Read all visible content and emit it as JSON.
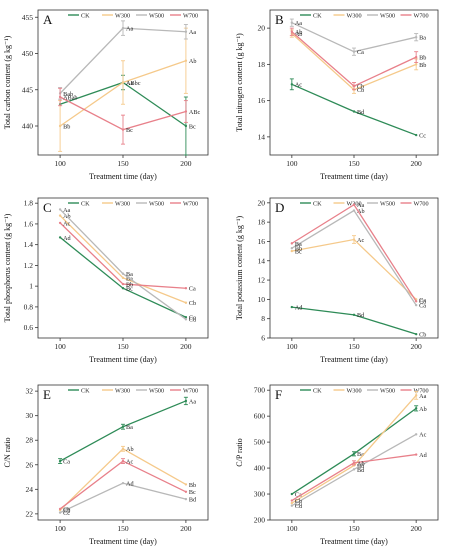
{
  "colors": {
    "CK": "#2e8b57",
    "W300": "#f5c98a",
    "W500": "#b8b8b8",
    "W700": "#e8808a",
    "axis": "#333333"
  },
  "chart_data": [
    {
      "type": "line",
      "panel_letter": "A",
      "ylabel": "Total carbon content (g kg⁻¹)",
      "xlabel": "Treatment time (day)",
      "x": [
        100,
        150,
        200
      ],
      "ylim": [
        436,
        456
      ],
      "yticks": [
        440,
        445,
        450,
        455
      ],
      "legend": [
        "CK",
        "W300",
        "W500",
        "W700"
      ],
      "series": [
        {
          "name": "CK",
          "values": [
            443.0,
            446.0,
            440.0
          ],
          "errors": [
            0,
            1.0,
            4.0
          ],
          "labels": [
            "",
            "Aa",
            "Bc"
          ]
        },
        {
          "name": "W300",
          "values": [
            440.0,
            446.0,
            449.0
          ],
          "errors": [
            3.5,
            3.0,
            4.5
          ],
          "labels": [
            "Bb",
            "ABbc",
            "Ab"
          ]
        },
        {
          "name": "W500",
          "values": [
            444.5,
            453.5,
            453.0
          ],
          "errors": [
            0.8,
            1.0,
            1.0
          ],
          "labels": [
            "Bab",
            "Aa",
            "Aa"
          ]
        },
        {
          "name": "W700",
          "values": [
            444.0,
            439.5,
            442.0
          ],
          "errors": [
            1.2,
            2.0,
            1.5
          ],
          "labels": [
            "ABab",
            "Bc",
            "ABc"
          ]
        }
      ]
    },
    {
      "type": "line",
      "panel_letter": "B",
      "ylabel": "Total nitrogen content (g kg⁻¹)",
      "xlabel": "Treatment time (day)",
      "x": [
        100,
        150,
        200
      ],
      "ylim": [
        13,
        21
      ],
      "yticks": [
        14,
        16,
        18,
        20
      ],
      "legend": [
        "CK",
        "W300",
        "W500",
        "W700"
      ],
      "series": [
        {
          "name": "CK",
          "values": [
            16.9,
            15.4,
            14.1
          ],
          "errors": [
            0.3,
            0,
            0
          ],
          "labels": [
            "Ac",
            "Bd",
            "Cc"
          ]
        },
        {
          "name": "W300",
          "values": [
            19.7,
            16.6,
            18.0
          ],
          "errors": [
            0.2,
            0.2,
            0.3
          ],
          "labels": [
            "Ab",
            "Cb",
            "Bb"
          ]
        },
        {
          "name": "W500",
          "values": [
            20.3,
            18.7,
            19.5
          ],
          "errors": [
            0.2,
            0.2,
            0.2
          ],
          "labels": [
            "Aa",
            "Ca",
            "Ba"
          ]
        },
        {
          "name": "W700",
          "values": [
            19.8,
            16.8,
            18.4
          ],
          "errors": [
            0.2,
            0.2,
            0.3
          ],
          "labels": [
            "Ab",
            "Cb",
            "Bb"
          ]
        }
      ]
    },
    {
      "type": "line",
      "panel_letter": "C",
      "ylabel": "Total phosphorus content (g kg⁻¹)",
      "xlabel": "Treatment time (day)",
      "x": [
        100,
        150,
        200
      ],
      "ylim": [
        0.5,
        1.85
      ],
      "yticks": [
        0.6,
        0.8,
        1.0,
        1.2,
        1.4,
        1.6,
        1.8
      ],
      "legend": [
        "CK",
        "W300",
        "W500",
        "W700"
      ],
      "series": [
        {
          "name": "CK",
          "values": [
            1.47,
            0.98,
            0.7
          ],
          "errors": [
            0,
            0,
            0
          ],
          "labels": [
            "Ad",
            "Bc",
            "Cc"
          ]
        },
        {
          "name": "W300",
          "values": [
            1.68,
            1.08,
            0.84
          ],
          "errors": [
            0,
            0,
            0
          ],
          "labels": [
            "Ab",
            "Ba",
            "Cb"
          ]
        },
        {
          "name": "W500",
          "values": [
            1.74,
            1.12,
            0.68
          ],
          "errors": [
            0,
            0,
            0
          ],
          "labels": [
            "Aa",
            "Ba",
            "Cd"
          ]
        },
        {
          "name": "W700",
          "values": [
            1.61,
            1.02,
            0.98
          ],
          "errors": [
            0,
            0,
            0
          ],
          "labels": [
            "Ac",
            "Bb",
            "Ca"
          ]
        }
      ]
    },
    {
      "type": "line",
      "panel_letter": "D",
      "ylabel": "Total potassium content (g kg⁻¹)",
      "xlabel": "Treatment time (day)",
      "x": [
        100,
        150,
        200
      ],
      "ylim": [
        6,
        20.5
      ],
      "yticks": [
        6,
        8,
        10,
        12,
        14,
        16,
        18,
        20
      ],
      "legend": [
        "CK",
        "W300",
        "W500",
        "W700"
      ],
      "series": [
        {
          "name": "CK",
          "values": [
            9.2,
            8.4,
            6.4
          ],
          "errors": [
            0,
            0,
            0
          ],
          "labels": [
            "Ad",
            "Bd",
            "Cb"
          ]
        },
        {
          "name": "W300",
          "values": [
            15.0,
            16.2,
            10.0
          ],
          "errors": [
            0,
            0.4,
            0
          ],
          "labels": [
            "Bc",
            "Ac",
            "Ca"
          ]
        },
        {
          "name": "W500",
          "values": [
            15.3,
            19.2,
            9.4
          ],
          "errors": [
            0,
            0,
            0
          ],
          "labels": [
            "Bb",
            "Ab",
            "Ca"
          ]
        },
        {
          "name": "W700",
          "values": [
            15.8,
            19.8,
            9.8
          ],
          "errors": [
            0,
            0,
            0
          ],
          "labels": [
            "Ba",
            "Aa",
            "Ca"
          ]
        }
      ]
    },
    {
      "type": "line",
      "panel_letter": "E",
      "ylabel": "C/N ratio",
      "xlabel": "Treatment time (day)",
      "x": [
        100,
        150,
        200
      ],
      "ylim": [
        21.5,
        32.5
      ],
      "yticks": [
        22,
        24,
        26,
        28,
        30,
        32
      ],
      "legend": [
        "CK",
        "W300",
        "W500",
        "W700"
      ],
      "series": [
        {
          "name": "CK",
          "values": [
            26.3,
            29.1,
            31.2
          ],
          "errors": [
            0.2,
            0.2,
            0.3
          ],
          "labels": [
            "Ca",
            "Ba",
            "Aa"
          ]
        },
        {
          "name": "W300",
          "values": [
            22.3,
            27.3,
            24.4
          ],
          "errors": [
            0,
            0.2,
            0
          ],
          "labels": [
            "Cb",
            "Ab",
            "Bb"
          ]
        },
        {
          "name": "W500",
          "values": [
            22.1,
            24.5,
            23.2
          ],
          "errors": [
            0,
            0,
            0
          ],
          "labels": [
            "Cc",
            "Ad",
            "Bd"
          ]
        },
        {
          "name": "W700",
          "values": [
            22.4,
            26.3,
            23.8
          ],
          "errors": [
            0,
            0.2,
            0
          ],
          "labels": [
            "Cb",
            "Ac",
            "Bc"
          ]
        }
      ]
    },
    {
      "type": "line",
      "panel_letter": "F",
      "ylabel": "C/P ratio",
      "xlabel": "Treatment time (day)",
      "x": [
        100,
        150,
        200
      ],
      "ylim": [
        200,
        720
      ],
      "yticks": [
        200,
        300,
        400,
        500,
        600,
        700
      ],
      "legend": [
        "CK",
        "W300",
        "W500",
        "W700"
      ],
      "series": [
        {
          "name": "CK",
          "values": [
            300,
            455,
            630
          ],
          "errors": [
            0,
            8,
            10
          ],
          "labels": [
            "Ca",
            "Ba",
            "Ab"
          ]
        },
        {
          "name": "W300",
          "values": [
            265,
            410,
            680
          ],
          "errors": [
            0,
            0,
            15
          ],
          "labels": [
            "Cc",
            "Bb",
            "Aa"
          ]
        },
        {
          "name": "W500",
          "values": [
            255,
            395,
            530
          ],
          "errors": [
            0,
            0,
            0
          ],
          "labels": [
            "Cd",
            "Bd",
            "Ac"
          ]
        },
        {
          "name": "W700",
          "values": [
            275,
            420,
            452
          ],
          "errors": [
            0,
            8,
            0
          ],
          "labels": [
            "Cb",
            "Ab",
            "Ad"
          ]
        }
      ]
    }
  ]
}
